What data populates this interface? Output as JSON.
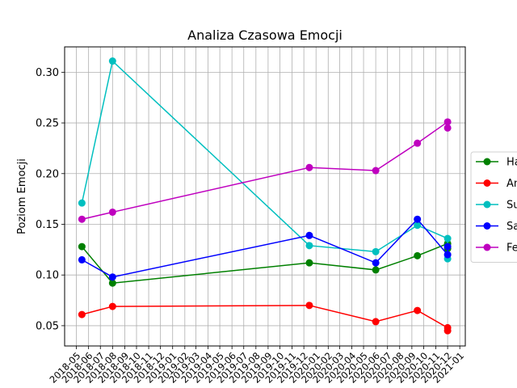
{
  "chart_data": {
    "type": "line",
    "title": "Analiza Czasowa Emocji",
    "xlabel": "",
    "ylabel": "Poziom Emocji",
    "grid": true,
    "legend_position": "center-right",
    "ylim": [
      0.03,
      0.325
    ],
    "xlim": [
      "2018-04-01",
      "2021-01-15"
    ],
    "y_ticks": [
      "0.05",
      "0.10",
      "0.15",
      "0.20",
      "0.25",
      "0.30"
    ],
    "x_tick_labels": [
      "2018-05",
      "2018-06",
      "2018-07",
      "2018-08",
      "2018-09",
      "2018-10",
      "2018-11",
      "2018-12",
      "2019-01",
      "2019-02",
      "2019-03",
      "2019-04",
      "2019-05",
      "2019-06",
      "2019-07",
      "2019-08",
      "2019-09",
      "2019-10",
      "2019-11",
      "2019-12",
      "2020-01",
      "2020-02",
      "2020-03",
      "2020-04",
      "2020-05",
      "2020-06",
      "2020-07",
      "2020-08",
      "2020-09",
      "2020-10",
      "2020-11",
      "2020-12",
      "2021-01"
    ],
    "dates": [
      "2018-05-15",
      "2018-08-01",
      "2019-12-15",
      "2020-06-01",
      "2020-09-15",
      "2020-12-01",
      "2020-12-01"
    ],
    "series": [
      {
        "name": "Ha",
        "color": "#008000",
        "values": [
          0.128,
          0.092,
          0.112,
          0.105,
          0.119,
          0.131,
          0.126
        ]
      },
      {
        "name": "An",
        "color": "#ff0000",
        "values": [
          0.061,
          0.069,
          0.07,
          0.054,
          0.065,
          0.048,
          0.045
        ]
      },
      {
        "name": "Su",
        "color": "#00bfbf",
        "values": [
          0.171,
          0.311,
          0.129,
          0.123,
          0.149,
          0.136,
          0.116
        ]
      },
      {
        "name": "Sa",
        "color": "#0000ff",
        "values": [
          0.115,
          0.098,
          0.139,
          0.112,
          0.155,
          0.12,
          0.128
        ]
      },
      {
        "name": "Fe",
        "color": "#bf00bf",
        "values": [
          0.155,
          0.162,
          0.206,
          0.203,
          0.23,
          0.251,
          0.245
        ]
      }
    ]
  }
}
